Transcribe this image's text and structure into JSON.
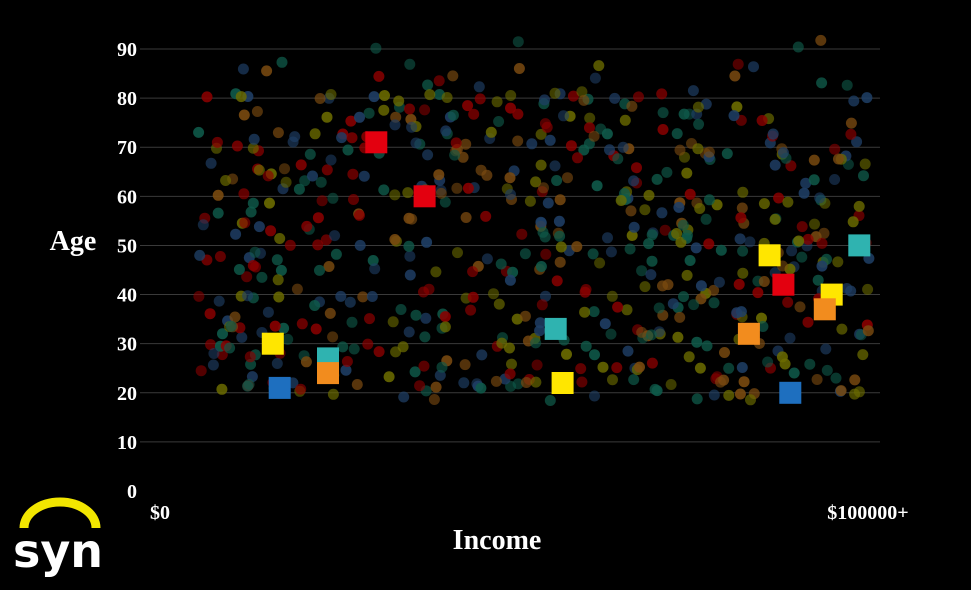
{
  "chart_data": {
    "type": "scatter",
    "title": "",
    "xlabel": "Income",
    "ylabel": "Age",
    "xlim": [
      0,
      100000
    ],
    "ylim": [
      0,
      90
    ],
    "x_tick_labels": [
      "$0",
      "$100000+"
    ],
    "y_ticks": [
      0,
      10,
      20,
      30,
      40,
      50,
      60,
      70,
      80,
      90
    ],
    "grid": true,
    "background": "#000000",
    "background_dot_colors": [
      "#8b0000",
      "#6b6b00",
      "#1f3f66",
      "#0f5a4a",
      "#7a4a10"
    ],
    "background_points_count": 650,
    "highlighted_points": [
      {
        "x": 27,
        "y": 71,
        "color": "#e3000f"
      },
      {
        "x": 34,
        "y": 60,
        "color": "#e3000f"
      },
      {
        "x": 86,
        "y": 42,
        "color": "#e3000f"
      },
      {
        "x": 12,
        "y": 30,
        "color": "#ffe600"
      },
      {
        "x": 54,
        "y": 22,
        "color": "#ffe600"
      },
      {
        "x": 84,
        "y": 48,
        "color": "#ffe600"
      },
      {
        "x": 93,
        "y": 40,
        "color": "#ffe600"
      },
      {
        "x": 20,
        "y": 27,
        "color": "#2fb3b0"
      },
      {
        "x": 53,
        "y": 33,
        "color": "#2fb3b0"
      },
      {
        "x": 97,
        "y": 50,
        "color": "#2fb3b0"
      },
      {
        "x": 20,
        "y": 24,
        "color": "#f28c1e"
      },
      {
        "x": 81,
        "y": 32,
        "color": "#f28c1e"
      },
      {
        "x": 92,
        "y": 37,
        "color": "#f28c1e"
      },
      {
        "x": 13,
        "y": 21,
        "color": "#1e6fbf"
      },
      {
        "x": 87,
        "y": 20,
        "color": "#1e6fbf"
      }
    ]
  },
  "logo": {
    "text": "syn",
    "arc_color": "#f2e600"
  }
}
